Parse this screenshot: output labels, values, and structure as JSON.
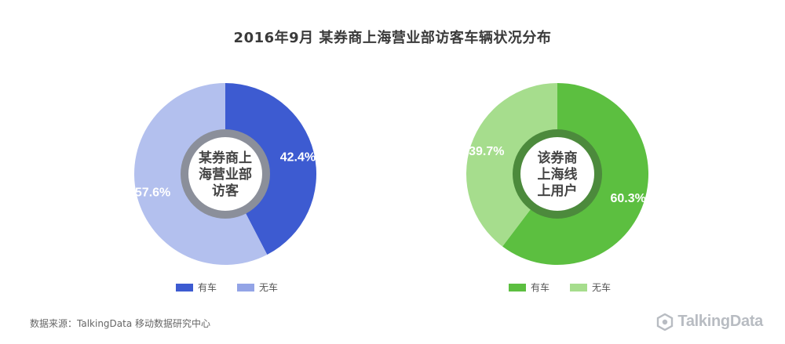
{
  "title": "2016年9月  某券商上海营业部访客车辆状况分布",
  "chart_data": [
    {
      "type": "pie",
      "center_label": [
        "某券商上",
        "海营业部",
        "访客"
      ],
      "slices": [
        {
          "name": "有车",
          "value": 42.4,
          "label": "42.4%",
          "color": "#3d5bd1"
        },
        {
          "name": "无车",
          "value": 57.6,
          "label": "57.6%",
          "color": "#b3c0ee"
        }
      ],
      "legend": [
        {
          "name": "有车",
          "color": "#3d5bd1"
        },
        {
          "name": "无车",
          "color": "#93a4e6"
        }
      ],
      "ring_color": "#8b8f9a",
      "hole_color": "#ffffff"
    },
    {
      "type": "pie",
      "center_label": [
        "该券商",
        "上海线",
        "上用户"
      ],
      "slices": [
        {
          "name": "有车",
          "value": 60.3,
          "label": "60.3%",
          "color": "#5cbf40"
        },
        {
          "name": "无车",
          "value": 39.7,
          "label": "39.7%",
          "color": "#a6dd8d"
        }
      ],
      "legend": [
        {
          "name": "有车",
          "color": "#5cbf40"
        },
        {
          "name": "无车",
          "color": "#a6dd8d"
        }
      ],
      "ring_color": "#4c8a3c",
      "hole_color": "#ffffff"
    }
  ],
  "footer": {
    "source": "数据来源：TalkingData 移动数据研究中心",
    "brand": "TalkingData"
  }
}
